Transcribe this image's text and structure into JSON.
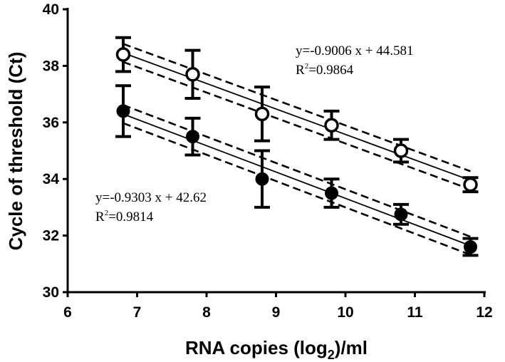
{
  "chart_data": {
    "type": "scatter",
    "xlabel": {
      "main": "RNA copies (log",
      "sub": "2",
      "tail": ")/ml"
    },
    "ylabel": "Cycle of threshold (Ct)",
    "xlim": [
      6,
      12
    ],
    "ylim": [
      30,
      40
    ],
    "xticks": [
      "6",
      "7",
      "8",
      "9",
      "10",
      "11",
      "12"
    ],
    "yticks": [
      "30",
      "32",
      "34",
      "36",
      "38",
      "40"
    ],
    "grid": false,
    "series": [
      {
        "marker": "open-circle",
        "x": [
          6.8,
          7.8,
          8.8,
          9.8,
          10.8,
          11.8
        ],
        "y": [
          38.4,
          37.7,
          36.3,
          35.9,
          35.0,
          33.8
        ],
        "err": [
          0.6,
          0.85,
          0.95,
          0.5,
          0.4,
          0.25
        ],
        "fit": {
          "slope": -0.9006,
          "intercept": 44.581,
          "ci_offset": 0.32
        },
        "equation": "y=-0.9006 x + 44.581",
        "r2_prefix": "R",
        "r2_sup": "2",
        "r2_value": "=0.9864"
      },
      {
        "marker": "filled-circle",
        "x": [
          6.8,
          7.8,
          8.8,
          9.8,
          10.8,
          11.8
        ],
        "y": [
          36.4,
          35.5,
          34.0,
          33.5,
          32.75,
          31.6
        ],
        "err": [
          0.9,
          0.65,
          1.0,
          0.5,
          0.35,
          0.3
        ],
        "fit": {
          "slope": -0.9303,
          "intercept": 42.62,
          "ci_offset": 0.32
        },
        "equation": "y=-0.9303 x + 42.62",
        "r2_prefix": "R",
        "r2_sup": "2",
        "r2_value": "=0.9814"
      }
    ]
  }
}
